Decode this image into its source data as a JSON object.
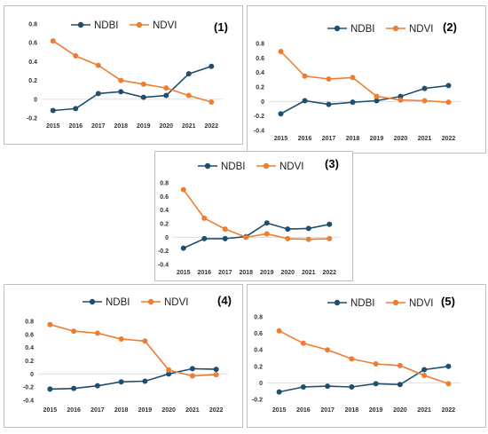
{
  "colors": {
    "ndbi": "#1f4e6e",
    "ndvi": "#ed7d31"
  },
  "chart_data": [
    {
      "type": "line",
      "label": "(1)",
      "legend_position": "top",
      "x": [
        "2015",
        "2016",
        "2017",
        "2018",
        "2019",
        "2020",
        "2021",
        "2022"
      ],
      "ylim": [
        -0.2,
        0.8
      ],
      "yticks": [
        -0.2,
        0,
        0.2,
        0.4,
        0.6,
        0.8
      ],
      "ytick_labels": [
        "-0.2",
        "0",
        "0.2",
        "0.4",
        "0.6",
        "0.8"
      ],
      "series": [
        {
          "name": "NDBI",
          "values": [
            -0.12,
            -0.1,
            0.06,
            0.08,
            0.02,
            0.04,
            0.27,
            0.35
          ]
        },
        {
          "name": "NDVI",
          "values": [
            0.62,
            0.46,
            0.36,
            0.2,
            0.16,
            0.12,
            0.04,
            -0.03
          ]
        }
      ]
    },
    {
      "type": "line",
      "label": "(2)",
      "legend_position": "top",
      "x": [
        "2015",
        "2016",
        "2017",
        "2018",
        "2019",
        "2020",
        "2021",
        "2022"
      ],
      "ylim": [
        -0.4,
        0.8
      ],
      "yticks": [
        -0.4,
        -0.2,
        0,
        0.2,
        0.4,
        0.6,
        0.8
      ],
      "ytick_labels": [
        "-0.4",
        "-0.2",
        "0",
        "0.2",
        "0.4",
        "0.6",
        "0.8"
      ],
      "series": [
        {
          "name": "NDBI",
          "values": [
            -0.17,
            0.01,
            -0.04,
            -0.01,
            0.01,
            0.07,
            0.18,
            0.22
          ]
        },
        {
          "name": "NDVI",
          "values": [
            0.69,
            0.35,
            0.31,
            0.33,
            0.07,
            0.02,
            0.01,
            -0.01
          ]
        }
      ]
    },
    {
      "type": "line",
      "label": "(3)",
      "legend_position": "top",
      "x": [
        "2015",
        "2016",
        "2017",
        "2018",
        "2019",
        "2020",
        "2021",
        "2022"
      ],
      "ylim": [
        -0.4,
        0.8
      ],
      "yticks": [
        -0.4,
        -0.2,
        0,
        0.2,
        0.4,
        0.6,
        0.8
      ],
      "ytick_labels": [
        "-0.4",
        "-0.2",
        "0",
        "0.2",
        "0.4",
        "0.6",
        "0.8"
      ],
      "series": [
        {
          "name": "NDBI",
          "values": [
            -0.16,
            -0.02,
            -0.02,
            0.01,
            0.21,
            0.12,
            0.13,
            0.19
          ]
        },
        {
          "name": "NDVI",
          "values": [
            0.7,
            0.28,
            0.12,
            0.0,
            0.05,
            -0.02,
            -0.03,
            -0.02
          ]
        }
      ]
    },
    {
      "type": "line",
      "label": "(4)",
      "legend_position": "top",
      "x": [
        "2015",
        "2016",
        "2017",
        "2018",
        "2019",
        "2020",
        "2021",
        "2022"
      ],
      "ylim": [
        -0.4,
        0.8
      ],
      "yticks": [
        -0.4,
        -0.2,
        0,
        0.2,
        0.4,
        0.6,
        0.8
      ],
      "ytick_labels": [
        "-0.4",
        "-0.2",
        "0",
        "0.2",
        "0.4",
        "0.6",
        "0.8"
      ],
      "series": [
        {
          "name": "NDBI",
          "values": [
            -0.23,
            -0.22,
            -0.18,
            -0.12,
            -0.11,
            0.0,
            0.08,
            0.07
          ]
        },
        {
          "name": "NDVI",
          "values": [
            0.75,
            0.65,
            0.62,
            0.53,
            0.5,
            0.06,
            -0.03,
            -0.01
          ]
        }
      ]
    },
    {
      "type": "line",
      "label": "(5)",
      "legend_position": "top",
      "x": [
        "2015",
        "2016",
        "2017",
        "2018",
        "2019",
        "2020",
        "2021",
        "2022"
      ],
      "ylim": [
        -0.2,
        0.8
      ],
      "yticks": [
        -0.2,
        0,
        0.2,
        0.4,
        0.6,
        0.8
      ],
      "ytick_labels": [
        "-0.2",
        "0",
        "0.2",
        "0.4",
        "0.6",
        "0.8"
      ],
      "series": [
        {
          "name": "NDBI",
          "values": [
            -0.11,
            -0.05,
            -0.04,
            -0.05,
            -0.01,
            -0.02,
            0.16,
            0.2
          ]
        },
        {
          "name": "NDVI",
          "values": [
            0.63,
            0.48,
            0.4,
            0.29,
            0.23,
            0.21,
            0.09,
            -0.01
          ]
        }
      ]
    }
  ]
}
